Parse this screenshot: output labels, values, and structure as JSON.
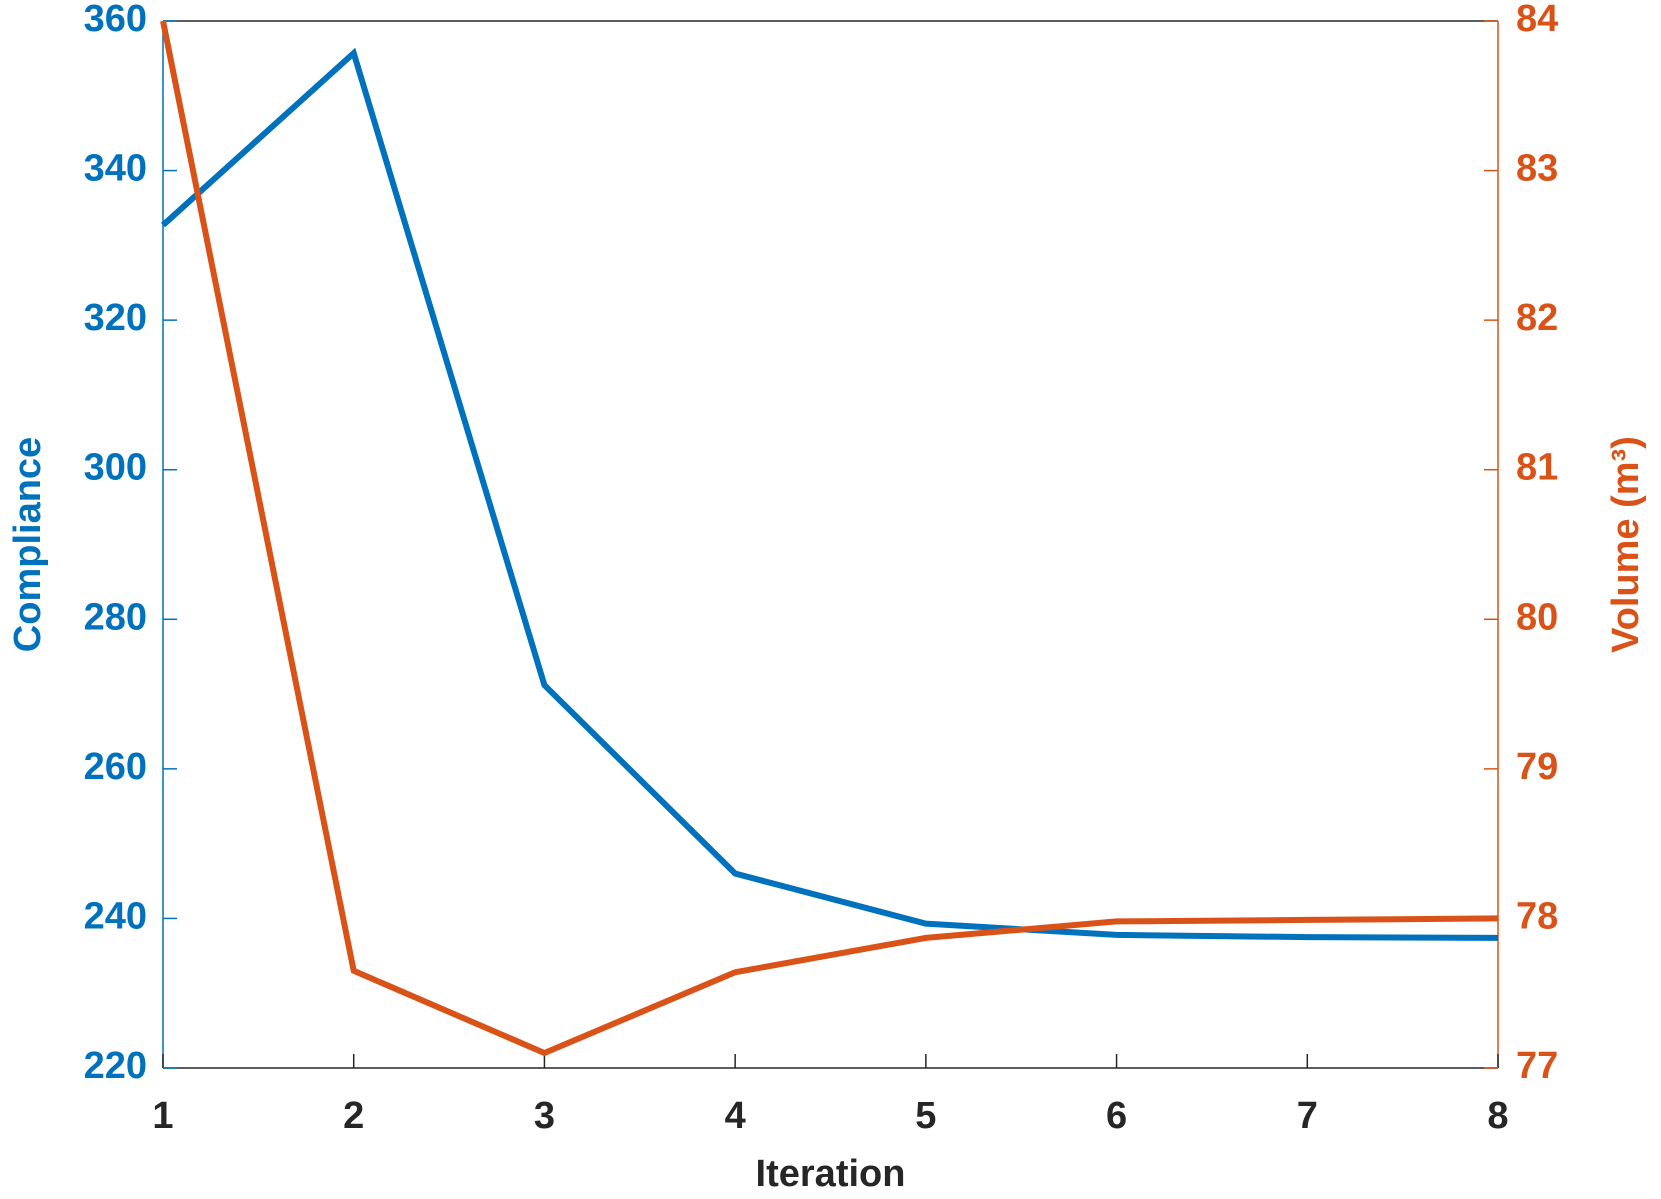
{
  "chart_data": {
    "type": "line",
    "xlabel": "Iteration",
    "ylabel": "Compliance",
    "y2label": "Volume (m³)",
    "x": [
      1,
      2,
      3,
      4,
      5,
      6,
      7,
      8
    ],
    "series": [
      {
        "name": "Compliance",
        "color": "#0072BD",
        "values": [
          332.7,
          355.7,
          271.2,
          246,
          239.3,
          237.8,
          237.5,
          237.4
        ]
      },
      {
        "name": "Volume",
        "color": "#D95319",
        "axis": "y2",
        "values": [
          84,
          77.65,
          77.1,
          77.64,
          77.87,
          77.98,
          77.99,
          78.0
        ]
      }
    ],
    "xlim": [
      1,
      8
    ],
    "xticks": [
      1,
      2,
      3,
      4,
      5,
      6,
      7,
      8
    ],
    "ylim": [
      220,
      360
    ],
    "yticks": [
      220,
      240,
      260,
      280,
      300,
      320,
      340,
      360
    ],
    "y2lim": [
      77,
      84
    ],
    "y2ticks": [
      77,
      78,
      79,
      80,
      81,
      82,
      83,
      84
    ]
  }
}
